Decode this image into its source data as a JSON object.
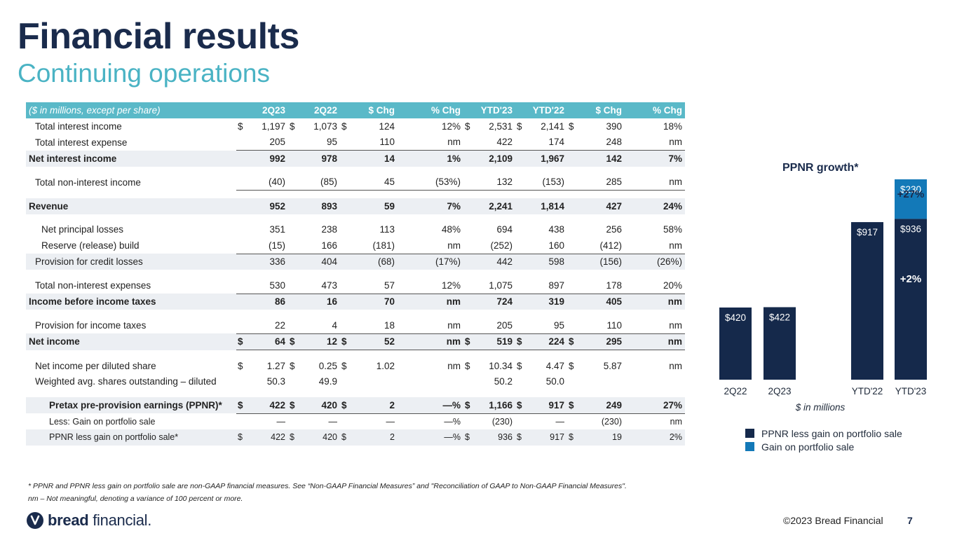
{
  "header": {
    "title": "Financial results",
    "subtitle": "Continuing operations"
  },
  "table": {
    "columns": [
      "($ in millions, except per share)",
      "2Q23",
      "2Q22",
      "$ Chg",
      "% Chg",
      "YTD'23",
      "YTD'22",
      "$ Chg",
      "% Chg"
    ],
    "rows": [
      {
        "label": "Total interest income",
        "values": [
          "$",
          "1,197",
          "$",
          "1,073",
          "$",
          "124",
          "",
          "12%",
          "$",
          "2,531",
          "$",
          "2,141",
          "$",
          "390",
          "",
          "18%"
        ]
      },
      {
        "label": "Total interest expense",
        "values": [
          "",
          "205",
          "",
          "95",
          "",
          "110",
          "",
          "nm",
          "",
          "422",
          "",
          "174",
          "",
          "248",
          "",
          "nm"
        ]
      },
      {
        "label": "Net interest income",
        "values": [
          "",
          "992",
          "",
          "978",
          "",
          "14",
          "",
          "1%",
          "",
          "2,109",
          "",
          "1,967",
          "",
          "142",
          "",
          "7%"
        ]
      },
      {
        "label": "Total non-interest income",
        "values": [
          "",
          "(40)",
          "",
          "(85)",
          "",
          "45",
          "",
          "(53%)",
          "",
          "132",
          "",
          "(153)",
          "",
          "285",
          "",
          "nm"
        ]
      },
      {
        "label": "Revenue",
        "values": [
          "",
          "952",
          "",
          "893",
          "",
          "59",
          "",
          "7%",
          "",
          "2,241",
          "",
          "1,814",
          "",
          "427",
          "",
          "24%"
        ]
      },
      {
        "label": "Net principal losses",
        "values": [
          "",
          "351",
          "",
          "238",
          "",
          "113",
          "",
          "48%",
          "",
          "694",
          "",
          "438",
          "",
          "256",
          "",
          "58%"
        ]
      },
      {
        "label": "Reserve (release) build",
        "values": [
          "",
          "(15)",
          "",
          "166",
          "",
          "(181)",
          "",
          "nm",
          "",
          "(252)",
          "",
          "160",
          "",
          "(412)",
          "",
          "nm"
        ]
      },
      {
        "label": "Provision for credit losses",
        "values": [
          "",
          "336",
          "",
          "404",
          "",
          "(68)",
          "",
          "(17%)",
          "",
          "442",
          "",
          "598",
          "",
          "(156)",
          "",
          "(26%)"
        ]
      },
      {
        "label": "Total non-interest expenses",
        "values": [
          "",
          "530",
          "",
          "473",
          "",
          "57",
          "",
          "12%",
          "",
          "1,075",
          "",
          "897",
          "",
          "178",
          "",
          "20%"
        ]
      },
      {
        "label": "Income before income taxes",
        "values": [
          "",
          "86",
          "",
          "16",
          "",
          "70",
          "",
          "nm",
          "",
          "724",
          "",
          "319",
          "",
          "405",
          "",
          "nm"
        ]
      },
      {
        "label": "Provision for income taxes",
        "values": [
          "",
          "22",
          "",
          "4",
          "",
          "18",
          "",
          "nm",
          "",
          "205",
          "",
          "95",
          "",
          "110",
          "",
          "nm"
        ]
      },
      {
        "label": "Net income",
        "values": [
          "$",
          "64",
          "$",
          "12",
          "$",
          "52",
          "",
          "nm",
          "$",
          "519",
          "$",
          "224",
          "$",
          "295",
          "",
          "nm"
        ]
      },
      {
        "label": "Net income per diluted share",
        "values": [
          "$",
          "1.27",
          "$",
          "0.25",
          "$",
          "1.02",
          "",
          "nm",
          "$",
          "10.34",
          "$",
          "4.47",
          "$",
          "5.87",
          "",
          "nm"
        ]
      },
      {
        "label": "Weighted avg. shares outstanding – diluted",
        "values": [
          "",
          "50.3",
          "",
          "49.9",
          "",
          "",
          "",
          "",
          "",
          "50.2",
          "",
          "50.0",
          "",
          "",
          "",
          ""
        ]
      },
      {
        "label": "Pretax pre-provision earnings (PPNR)*",
        "values": [
          "$",
          "422",
          "$",
          "420",
          "$",
          "2",
          "",
          "—%",
          "$",
          "1,166",
          "$",
          "917",
          "$",
          "249",
          "",
          "27%"
        ]
      },
      {
        "label": "Less: Gain on portfolio sale",
        "values": [
          "",
          "—",
          "",
          "—",
          "",
          "—",
          "",
          "—%",
          "",
          "(230)",
          "",
          "—",
          "",
          "(230)",
          "",
          "nm"
        ]
      },
      {
        "label": "PPNR less gain on portfolio sale*",
        "values": [
          "$",
          "422",
          "$",
          "420",
          "$",
          "2",
          "",
          "—%",
          "$",
          "936",
          "$",
          "917",
          "$",
          "19",
          "",
          "2%"
        ]
      }
    ]
  },
  "footnotes": [
    "* PPNR and PPNR less gain on portfolio sale are non-GAAP financial measures. See “Non-GAAP Financial Measures” and \"Reconciliation of GAAP to Non-GAAP Financial Measures\".",
    "nm – Not meaningful, denoting a variance of 100 percent or more."
  ],
  "chart_data": {
    "type": "bar",
    "title": "PPNR growth*",
    "categories": [
      "2Q22",
      "2Q23",
      "YTD'22",
      "YTD'23"
    ],
    "series": [
      {
        "name": "PPNR less gain on portfolio sale",
        "values": [
          420,
          422,
          917,
          936
        ],
        "labels": [
          "$420",
          "$422",
          "$917",
          "$936"
        ],
        "color": "#15294b"
      },
      {
        "name": "Gain on portfolio sale",
        "values": [
          0,
          0,
          0,
          230
        ],
        "labels": [
          "",
          "",
          "",
          "$230"
        ],
        "color": "#1379b8"
      }
    ],
    "annotations": [
      "+27%",
      "+2%"
    ],
    "xlabel": "$ in millions",
    "ylim": [
      0,
      1166
    ]
  },
  "footer": {
    "brand_bold": "bread",
    "brand_rest": " financial.",
    "copyright": "©2023 Bread Financial",
    "page": "7"
  }
}
